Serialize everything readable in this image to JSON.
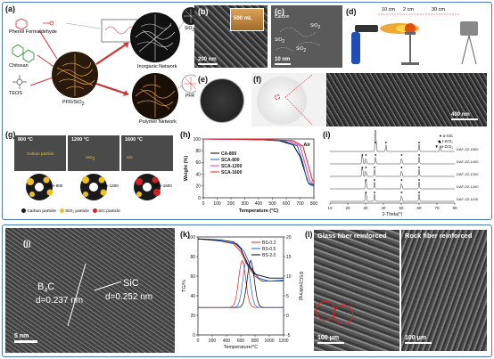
{
  "top": {
    "a": {
      "label": "(a)",
      "phenol_formaldehyde": "Phenol  Formaldehyde",
      "chitosan": "Chitosan",
      "teos": "TEOS",
      "pfr_sio2": "PFR/SiO",
      "inorganic_network": "Inorganic Network",
      "polymer_network": "Polymer Network",
      "sio2": "SiO",
      "pfr": "PFR"
    },
    "b": {
      "label": "(b)",
      "inset": "500 mL",
      "scale": "200 nm"
    },
    "c": {
      "label": "(c)",
      "scale": "10 nm",
      "tags": [
        "SiO",
        "SiO",
        "SiO",
        "Carbon"
      ]
    },
    "d": {
      "label": "(d)",
      "dims": [
        "10 cm",
        "2 cm",
        "30 cm"
      ]
    },
    "e": {
      "label": "(e)"
    },
    "f": {
      "label": "(f)",
      "scale": "400 nm"
    },
    "g": {
      "label": "(g)",
      "temps": [
        "800 °C",
        "1200 °C",
        "1600 °C"
      ],
      "annotations": [
        "Carbon particle",
        "SiO",
        "SiC"
      ],
      "samples": [
        "SCA-800",
        "SCA-1200",
        "SCA-1600"
      ],
      "legend": [
        "Carbon particle",
        "SiO₂ particle",
        "SiC particle"
      ]
    },
    "h": {
      "label": "(h)",
      "air": "Air"
    },
    "i": {
      "label": "(i)",
      "legend": [
        "● α-SiC",
        "◆ t-ZrO₂",
        "▼ m-ZrO₂"
      ],
      "samples": [
        "DAF-ZZ-1500",
        "DAF-ZZ-1400",
        "DAF-ZZ-1300",
        "DAF-ZZ-1200",
        "DAF-ZZ-1100"
      ],
      "xlabel": "2-Theta(°)",
      "xticks": [
        "10",
        "20",
        "30",
        "40",
        "50",
        "60",
        "70",
        "80"
      ]
    }
  },
  "bottom": {
    "j": {
      "label": "(j)",
      "b4c": "B",
      "b4c_sub": "4",
      "b4c_c": "C",
      "d1": "d=0.237 nm",
      "sic": "SiC",
      "d2": "d=0.252 nm",
      "scale": "5 nm"
    },
    "k": {
      "label": "(k)",
      "xlabel": "Temperature/°C",
      "ylabel_left": "TG/%",
      "ylabel_right": "DSC/(mW/mg)",
      "legend": [
        "BS-0.2",
        "BS-0.5",
        "BS-2.0"
      ]
    },
    "l": {
      "label": "(l)",
      "left_title": "Glass fiber reinforced",
      "right_title": "Rock fiber reinforced",
      "scale_left": "100 μm",
      "scale_right": "100 μm"
    }
  },
  "chart_data": [
    {
      "type": "line",
      "id": "h",
      "xlabel": "Temperature (°C)",
      "ylabel": "Weight (%)",
      "xlim": [
        0,
        800
      ],
      "ylim": [
        0,
        100
      ],
      "xticks": [
        0,
        100,
        200,
        300,
        400,
        500,
        600,
        700,
        800
      ],
      "yticks": [
        0,
        20,
        40,
        60,
        80,
        100
      ],
      "legend_position": "top-left",
      "series": [
        {
          "name": "CA-800",
          "color": "#000000",
          "points": [
            [
              0,
              100
            ],
            [
              400,
              99
            ],
            [
              550,
              97
            ],
            [
              650,
              90
            ],
            [
              700,
              70
            ],
            [
              740,
              40
            ],
            [
              760,
              25
            ],
            [
              800,
              22
            ]
          ]
        },
        {
          "name": "SCA-800",
          "color": "#1e5fd6",
          "points": [
            [
              0,
              100
            ],
            [
              400,
              99
            ],
            [
              580,
              97
            ],
            [
              680,
              88
            ],
            [
              720,
              60
            ],
            [
              750,
              30
            ],
            [
              770,
              22
            ],
            [
              800,
              20
            ]
          ]
        },
        {
          "name": "SCA-1200",
          "color": "#d43db0",
          "points": [
            [
              0,
              100
            ],
            [
              450,
              99
            ],
            [
              620,
              97
            ],
            [
              700,
              88
            ],
            [
              740,
              55
            ],
            [
              770,
              28
            ],
            [
              800,
              25
            ]
          ]
        },
        {
          "name": "SCA-1600",
          "color": "#e02020",
          "points": [
            [
              0,
              100
            ],
            [
              450,
              99
            ],
            [
              650,
              97
            ],
            [
              720,
              88
            ],
            [
              760,
              55
            ],
            [
              790,
              30
            ],
            [
              800,
              28
            ]
          ]
        }
      ]
    },
    {
      "type": "line",
      "id": "k",
      "xlabel": "Temperature/°C",
      "ylabel": "TG/%",
      "ylabel_right": "DSC/(mW/mg)",
      "xlim": [
        0,
        1200
      ],
      "ylim": [
        0,
        100
      ],
      "xticks": [
        0,
        200,
        400,
        600,
        800,
        1000,
        1200
      ],
      "yticks": [
        0,
        20,
        40,
        60,
        80,
        100
      ],
      "yticks_right": [
        -5,
        0,
        5,
        10,
        15,
        20
      ],
      "series": [
        {
          "name": "BS-0.2",
          "color": "#e02020",
          "points": [
            [
              0,
              98
            ],
            [
              300,
              96
            ],
            [
              500,
              93
            ],
            [
              600,
              85
            ],
            [
              700,
              70
            ],
            [
              800,
              60
            ],
            [
              900,
              55
            ],
            [
              1200,
              55
            ]
          ]
        },
        {
          "name": "BS-0.5",
          "color": "#1e5fd6",
          "points": [
            [
              0,
              98
            ],
            [
              300,
              96
            ],
            [
              550,
              93
            ],
            [
              650,
              85
            ],
            [
              750,
              68
            ],
            [
              850,
              58
            ],
            [
              1000,
              55
            ],
            [
              1200,
              56
            ]
          ]
        },
        {
          "name": "BS-2.0",
          "color": "#000000",
          "points": [
            [
              0,
              98
            ],
            [
              300,
              97
            ],
            [
              500,
              95
            ],
            [
              600,
              88
            ],
            [
              700,
              72
            ],
            [
              800,
              62
            ],
            [
              1000,
              58
            ],
            [
              1200,
              58
            ]
          ]
        }
      ]
    },
    {
      "type": "line",
      "id": "i",
      "xlabel": "2-Theta(°)",
      "xlim": [
        10,
        80
      ],
      "xticks": [
        10,
        20,
        30,
        40,
        50,
        60,
        70,
        80
      ],
      "series": [
        {
          "name": "DAF-ZZ-1500",
          "peaks": [
            35.6,
            41.4,
            60.0,
            71.8
          ]
        },
        {
          "name": "DAF-ZZ-1400",
          "peaks": [
            28.2,
            30.2,
            35.6,
            50.2,
            60.0
          ]
        },
        {
          "name": "DAF-ZZ-1300",
          "peaks": [
            28.2,
            30.2,
            35.0,
            50.2,
            60.0
          ]
        },
        {
          "name": "DAF-ZZ-1200",
          "peaks": [
            30.2,
            35.0,
            50.2,
            60.0
          ]
        },
        {
          "name": "DAF-ZZ-1100",
          "peaks": [
            30.2,
            35.0,
            50.2,
            60.0
          ]
        }
      ]
    }
  ]
}
